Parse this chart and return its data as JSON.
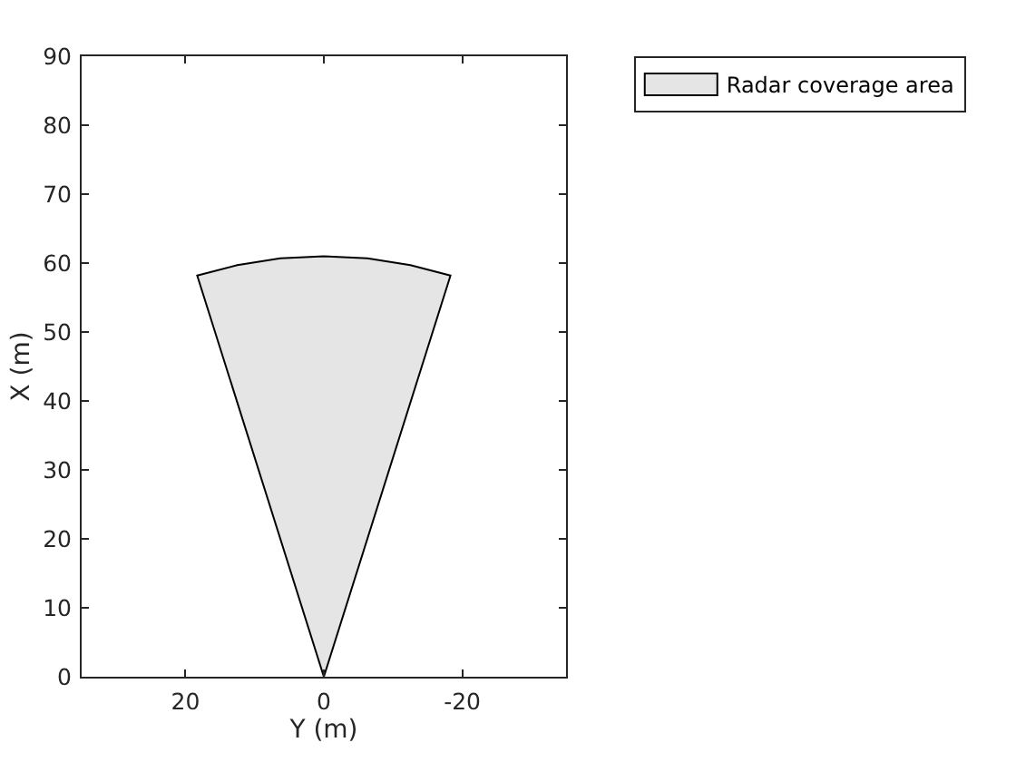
{
  "chart_data": {
    "type": "area",
    "xlabel": "Y (m)",
    "ylabel": "X (m)",
    "xlim": [
      35,
      -35
    ],
    "xticks": [
      20,
      0,
      -20
    ],
    "ylim": [
      0,
      90
    ],
    "yticks": [
      0,
      10,
      20,
      30,
      40,
      50,
      60,
      70,
      80,
      90
    ],
    "legend": "top right",
    "series": [
      {
        "name": "Radar coverage area",
        "color": "#e5e5e5",
        "x": [
          0,
          18.3,
          12.5,
          6.3,
          0,
          -6.3,
          -12.5,
          -18.3,
          0
        ],
        "values": [
          0,
          58.2,
          59.7,
          60.7,
          61,
          60.7,
          59.7,
          58.2,
          0
        ]
      }
    ]
  }
}
